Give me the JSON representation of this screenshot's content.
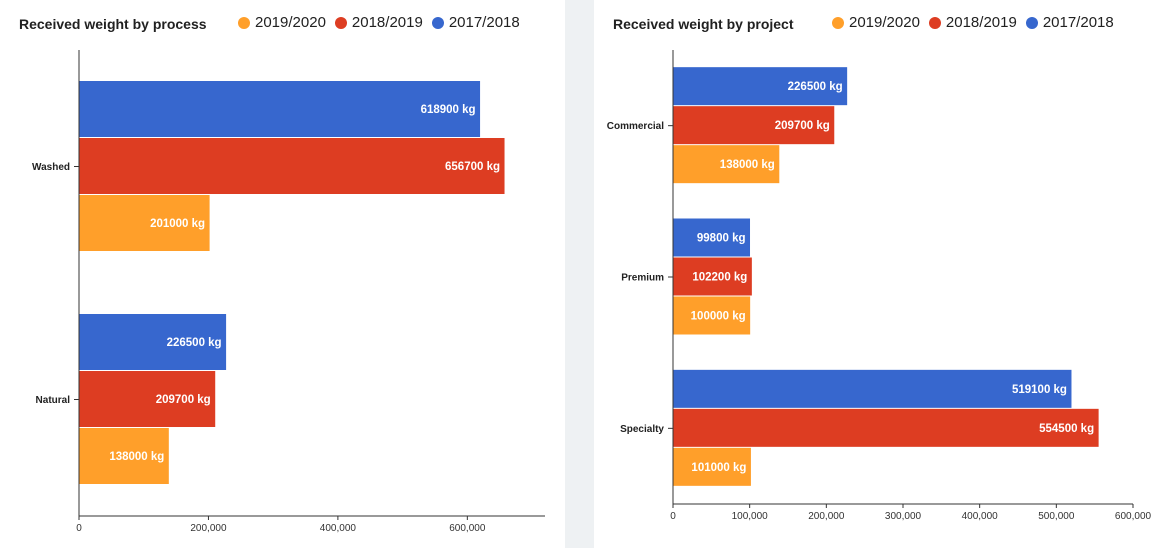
{
  "legend": [
    {
      "label": "2019/2020",
      "color": "#ff9f2a"
    },
    {
      "label": "2018/2019",
      "color": "#dd3d22"
    },
    {
      "label": "2017/2018",
      "color": "#3767ce"
    }
  ],
  "chart_data": [
    {
      "type": "bar",
      "orientation": "horizontal",
      "title": "Received weight by process",
      "categories": [
        "Washed",
        "Natural"
      ],
      "series": [
        {
          "name": "2017/2018",
          "color": "#3767ce",
          "values": [
            618900,
            226500
          ]
        },
        {
          "name": "2018/2019",
          "color": "#dd3d22",
          "values": [
            656700,
            209700
          ]
        },
        {
          "name": "2019/2020",
          "color": "#ff9f2a",
          "values": [
            201000,
            138000
          ]
        }
      ],
      "unit": "kg",
      "xlim": [
        0,
        720000
      ],
      "xticks": [
        0,
        200000,
        400000,
        600000
      ],
      "xtick_labels": [
        "0",
        "200,000",
        "400,000",
        "600,000"
      ],
      "legend_position": "top-right"
    },
    {
      "type": "bar",
      "orientation": "horizontal",
      "title": "Received weight by project",
      "categories": [
        "Commercial",
        "Premium",
        "Specialty"
      ],
      "series": [
        {
          "name": "2017/2018",
          "color": "#3767ce",
          "values": [
            226500,
            99800,
            519100
          ]
        },
        {
          "name": "2018/2019",
          "color": "#dd3d22",
          "values": [
            209700,
            102200,
            554500
          ]
        },
        {
          "name": "2019/2020",
          "color": "#ff9f2a",
          "values": [
            138000,
            100000,
            101000
          ]
        }
      ],
      "unit": "kg",
      "xlim": [
        0,
        610000
      ],
      "xticks": [
        0,
        100000,
        200000,
        300000,
        400000,
        500000,
        600000
      ],
      "xtick_labels": [
        "0",
        "100,000",
        "200,000",
        "300,000",
        "400,000",
        "500,000",
        "600,000"
      ],
      "legend_position": "top-right"
    }
  ]
}
